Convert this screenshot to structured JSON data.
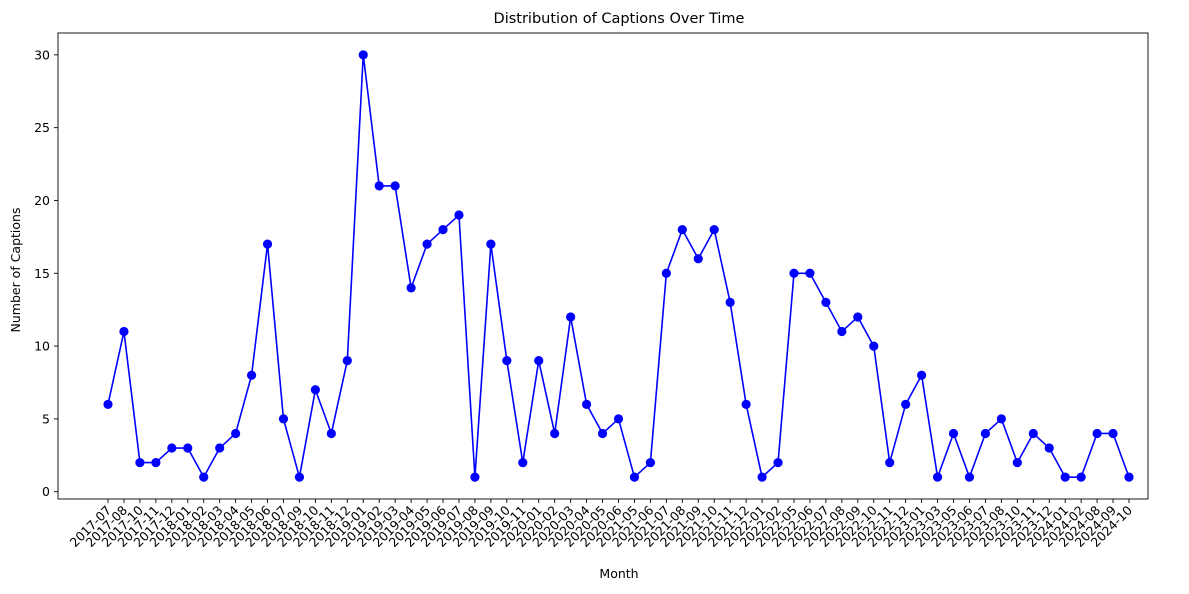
{
  "chart_data": {
    "type": "line",
    "title": "Distribution of Captions Over Time",
    "xlabel": "Month",
    "ylabel": "Number of Captions",
    "ylim": [
      -0.5,
      31.5
    ],
    "yticks": [
      0,
      5,
      10,
      15,
      20,
      25,
      30
    ],
    "grid": false,
    "legend": "none",
    "marker": "circle",
    "color": "#0000ff",
    "categories": [
      "2017-07",
      "2017-08",
      "2017-10",
      "2017-11",
      "2017-12",
      "2018-01",
      "2018-02",
      "2018-03",
      "2018-04",
      "2018-05",
      "2018-06",
      "2018-07",
      "2018-09",
      "2018-10",
      "2018-11",
      "2018-12",
      "2019-01",
      "2019-02",
      "2019-03",
      "2019-04",
      "2019-05",
      "2019-06",
      "2019-07",
      "2019-08",
      "2019-09",
      "2019-10",
      "2019-11",
      "2020-01",
      "2020-02",
      "2020-03",
      "2020-04",
      "2020-05",
      "2020-06",
      "2021-05",
      "2021-06",
      "2021-07",
      "2021-08",
      "2021-09",
      "2021-10",
      "2021-11",
      "2021-12",
      "2022-01",
      "2022-02",
      "2022-05",
      "2022-06",
      "2022-07",
      "2022-08",
      "2022-09",
      "2022-10",
      "2022-11",
      "2022-12",
      "2023-01",
      "2023-03",
      "2023-05",
      "2023-06",
      "2023-07",
      "2023-08",
      "2023-10",
      "2023-11",
      "2023-12",
      "2024-01",
      "2024-02",
      "2024-08",
      "2024-09",
      "2024-10"
    ],
    "values": [
      6,
      11,
      2,
      2,
      3,
      3,
      1,
      3,
      4,
      8,
      17,
      5,
      1,
      7,
      4,
      9,
      30,
      21,
      21,
      14,
      17,
      18,
      19,
      1,
      17,
      9,
      2,
      9,
      4,
      12,
      6,
      4,
      5,
      1,
      2,
      15,
      18,
      16,
      18,
      13,
      6,
      1,
      2,
      15,
      15,
      13,
      11,
      12,
      10,
      2,
      6,
      8,
      1,
      4,
      1,
      4,
      5,
      2,
      4,
      3,
      1,
      1,
      4,
      4,
      1
    ]
  }
}
